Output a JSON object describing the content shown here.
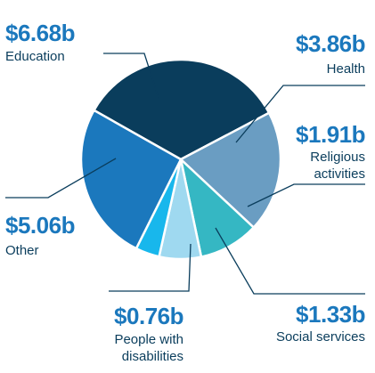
{
  "chart_data": {
    "type": "pie",
    "unit": "$ billions",
    "slices": [
      {
        "value_label": "$6.68b",
        "category_label": [
          "Education"
        ],
        "value": 6.68,
        "color": "#0a3d5c"
      },
      {
        "value_label": "$3.86b",
        "category_label": [
          "Health"
        ],
        "value": 3.86,
        "color": "#6a9dc2"
      },
      {
        "value_label": "$1.91b",
        "category_label": [
          "Religious",
          "activities"
        ],
        "value": 1.91,
        "color": "#35b7c3"
      },
      {
        "value_label": "$1.33b",
        "category_label": [
          "Social services"
        ],
        "value": 1.33,
        "color": "#9fd9f0"
      },
      {
        "value_label": "$0.76b",
        "category_label": [
          "People with",
          "disabilities"
        ],
        "value": 0.76,
        "color": "#18b7ec"
      },
      {
        "value_label": "$5.06b",
        "category_label": [
          "Other"
        ],
        "value": 5.06,
        "color": "#1b78bd"
      }
    ],
    "value_color": "#1b78bd",
    "label_color": "#0a3d5c",
    "leader_color": "#0a3d5c"
  }
}
